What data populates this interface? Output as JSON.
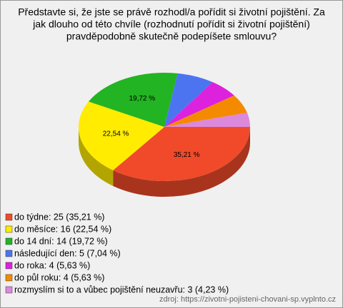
{
  "chart_data": {
    "type": "pie",
    "title": [
      "Představte si, že jste se právě rozhodl/a pořídit si životní pojištění. Za",
      "jak dlouho od této chvíle (rozhodnutí pořídit si životní pojištění)",
      "pravděpodobně skutečně podepíšete smlouvu?"
    ],
    "categories": [
      "do týdne",
      "do měsíce",
      "do 14 dní",
      "následující den",
      "do roka",
      "do půl roku",
      "rozmyslím si to a vůbec pojištění neuzavřu"
    ],
    "values": [
      35.21,
      22.54,
      19.72,
      7.04,
      5.63,
      5.63,
      4.23
    ],
    "value_labels": [
      "35,21 %",
      "22,54 %",
      "19,72 %",
      null,
      null,
      null,
      null
    ],
    "legend_labels": [
      "do týdne: 25 (35,21 %)",
      "do měsíce: 16 (22,54 %)",
      "do 14 dní: 14 (19,72 %)",
      "následující den: 5 (7,04 %)",
      "do roka: 4 (5,63 %)",
      "do půl roku: 4 (5,63 %)",
      "rozmyslím si to a vůbec pojištění neuzavřu: 3 (4,23 %)"
    ],
    "colors": [
      "#f04a2a",
      "#ffec00",
      "#22b422",
      "#4d74f0",
      "#dc22dc",
      "#f48a00",
      "#dc88dc"
    ],
    "source": "zdroj: https://zivotni-pojisteni-chovani-sp.vyplnto.cz"
  }
}
